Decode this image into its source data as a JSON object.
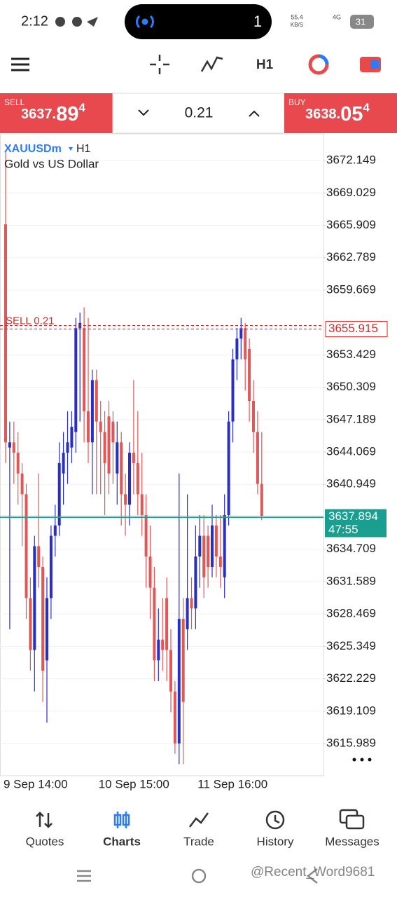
{
  "status_bar": {
    "time": "2:12",
    "island_count": "1",
    "speed": "55.4",
    "speed_unit": "KB/S",
    "network": "4G",
    "battery": "31"
  },
  "toolbar": {
    "timeframe": "H1"
  },
  "trade_panel": {
    "sell": {
      "label": "SELL",
      "price_main": "3637.",
      "price_big": "89",
      "price_sup": "4"
    },
    "volume": "0.21",
    "buy": {
      "label": "BUY",
      "price_main": "3638.",
      "price_big": "05",
      "price_sup": "4"
    }
  },
  "chart_data": {
    "type": "candlestick",
    "symbol": "XAUUSDm",
    "timeframe": "H1",
    "description": "Gold vs US Dollar",
    "categories": [
      "9 Sep 14:00",
      null,
      null,
      null,
      null,
      null,
      null,
      null,
      null,
      null,
      null,
      null,
      null,
      null,
      null,
      null,
      null,
      null,
      null,
      null,
      null,
      null,
      null,
      "10 Sep 15:00",
      null,
      null,
      null,
      null,
      null,
      null,
      null,
      null,
      null,
      null,
      null,
      null,
      null,
      null,
      null,
      null,
      null,
      null,
      null,
      null,
      null,
      null,
      null,
      "11 Sep 16:00",
      null,
      null,
      null,
      null,
      null,
      null,
      null,
      null,
      null,
      null,
      null,
      null,
      null,
      null,
      null
    ],
    "open": [
      3666,
      3644.5,
      3645,
      3644,
      3642,
      3640,
      3630,
      3625,
      3635,
      3633,
      3624,
      3630,
      3636,
      3637,
      3642,
      3644,
      3644.5,
      3646,
      3656,
      3656,
      3648,
      3645,
      3651,
      3647,
      3646,
      3647.5,
      3647,
      3642,
      3645,
      3640,
      3639,
      3644,
      3643,
      3640,
      3638,
      3634,
      3631,
      3624,
      3626,
      3630,
      3625,
      3621,
      3616,
      3628,
      3627,
      3630,
      3629,
      3634,
      3636,
      3636,
      3633,
      3637,
      3634,
      3632,
      3638,
      3647,
      3653,
      3655,
      3656,
      3654,
      3649,
      3646,
      3641
    ],
    "high": [
      3673,
      3647,
      3647,
      3646,
      3643,
      3641,
      3632,
      3636,
      3642,
      3634,
      3632,
      3637,
      3639,
      3645,
      3646,
      3648,
      3648,
      3657,
      3657.5,
      3658,
      3657,
      3652,
      3652,
      3649,
      3648,
      3649,
      3648,
      3647,
      3646,
      3642,
      3645,
      3651,
      3648,
      3644,
      3640,
      3637,
      3633,
      3629,
      3630,
      3632,
      3627,
      3622,
      3642,
      3630,
      3640,
      3632,
      3637,
      3638,
      3638,
      3637,
      3639,
      3638,
      3638,
      3640,
      3648,
      3654,
      3656,
      3657,
      3656.5,
      3655,
      3651,
      3648,
      3646
    ],
    "low": [
      3643,
      3627,
      3641,
      3639,
      3635,
      3628,
      3623,
      3621,
      3631,
      3620,
      3618,
      3628,
      3634,
      3636,
      3639,
      3641,
      3643,
      3644,
      3647,
      3645,
      3643,
      3640,
      3640,
      3640,
      3638,
      3640,
      3641,
      3639,
      3637,
      3636,
      3637,
      3640,
      3638,
      3636,
      3631,
      3628,
      3622,
      3622,
      3623,
      3622,
      3619,
      3615,
      3614,
      3614,
      3625,
      3627,
      3627,
      3631,
      3630,
      3631,
      3632,
      3632,
      3631,
      3630,
      3637,
      3645,
      3651,
      3653,
      3650,
      3647,
      3644,
      3640,
      3637.5
    ],
    "close": [
      3645,
      3645,
      3644,
      3642,
      3640,
      3630,
      3625,
      3635,
      3633,
      3623,
      3630,
      3636,
      3637,
      3643,
      3644,
      3645,
      3646.5,
      3656,
      3656.5,
      3648,
      3645,
      3651,
      3647,
      3646,
      3643,
      3642,
      3645,
      3645,
      3640,
      3639,
      3644,
      3643,
      3640,
      3638,
      3634,
      3631,
      3624,
      3626,
      3625,
      3625,
      3621,
      3616,
      3628,
      3620,
      3630,
      3629,
      3634,
      3636,
      3632,
      3633,
      3637,
      3634,
      3633,
      3638,
      3647,
      3653,
      3655,
      3656,
      3653,
      3649,
      3646,
      3641,
      3637.894
    ],
    "up_color": "#2a2fc4",
    "down_color": "#e05757",
    "ylim": [
      3613.02,
      3674.65
    ],
    "yticks": [
      3672.149,
      3669.029,
      3665.909,
      3662.789,
      3659.669,
      3653.429,
      3650.309,
      3647.189,
      3644.069,
      3640.949,
      3634.709,
      3631.589,
      3628.469,
      3625.349,
      3622.229,
      3619.109,
      3615.989
    ],
    "grid": true,
    "order_line": {
      "label": "SELL 0.21",
      "value": 3655.915,
      "color": "#d62b2b"
    },
    "bid_line": {
      "value": 3637.894,
      "countdown": "47:55",
      "color": "#1a9e8f"
    }
  },
  "bottom_nav": {
    "items": [
      "Quotes",
      "Charts",
      "Trade",
      "History",
      "Messages"
    ],
    "active": "Charts"
  },
  "watermark": "@Recent_Word9681"
}
